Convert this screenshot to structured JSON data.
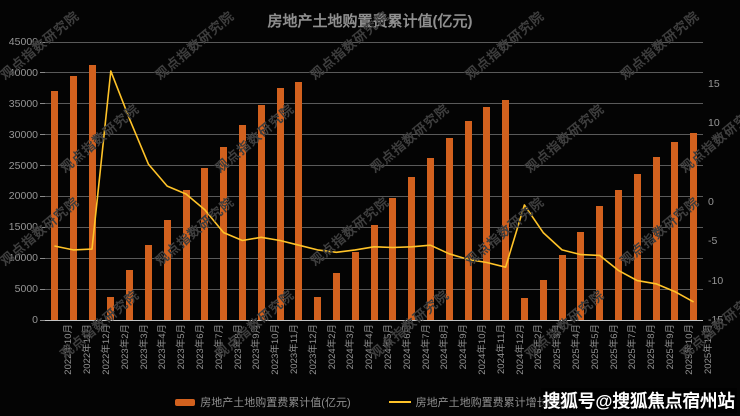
{
  "title": "房地产土地购置费累计值(亿元)",
  "watermark": "观点指数研究院",
  "overlay_credit": "搜狐号@搜狐焦点宿州站",
  "legend": [
    {
      "label": "房地产土地购置费累计值(亿元)",
      "type": "bar",
      "color": "#d2611e"
    },
    {
      "label": "房地产土地购置费累计增长(%)",
      "type": "line",
      "color": "#ffc328"
    }
  ],
  "chart_data": {
    "type": "bar",
    "subtype": "combo bar+line, dual axis",
    "title": "房地产土地购置费累计值(亿元)",
    "categories": [
      "2022年10月",
      "2022年11月",
      "2022年12月",
      "2023年2月",
      "2023年3月",
      "2023年4月",
      "2023年5月",
      "2023年6月",
      "2023年7月",
      "2023年8月",
      "2023年9月",
      "2023年10月",
      "2023年11月",
      "2023年12月",
      "2024年2月",
      "2024年3月",
      "2024年4月",
      "2024年5月",
      "2024年6月",
      "2024年7月",
      "2024年8月",
      "2024年9月",
      "2024年10月",
      "2024年11月",
      "2024年12月",
      "2025年2月",
      "2025年3月",
      "2025年4月",
      "2025年5月",
      "2025年6月",
      "2025年7月",
      "2025年8月",
      "2025年9月",
      "2025年10月",
      "2025年11月"
    ],
    "series": [
      {
        "name": "房地产土地购置费累计值(亿元)",
        "type": "bar",
        "axis": "left",
        "color": "#d2611e",
        "values": [
          37000,
          39500,
          41300,
          3800,
          8100,
          12100,
          16200,
          21000,
          24600,
          28000,
          31500,
          34800,
          37500,
          38600,
          3700,
          7600,
          11000,
          15400,
          19700,
          23200,
          26200,
          29400,
          32200,
          34500,
          35600,
          3500,
          6500,
          10500,
          14200,
          18500,
          21000,
          23600,
          26400,
          28800,
          30200
        ]
      },
      {
        "name": "房地产土地购置费累计增长(%)",
        "type": "line",
        "axis": "right",
        "color": "#ffc328",
        "values": [
          -5.6,
          -6.1,
          -6.0,
          16.6,
          10.5,
          4.8,
          2.0,
          1.0,
          -1.0,
          -3.9,
          -4.9,
          -4.5,
          -4.9,
          -5.5,
          -6.1,
          -6.4,
          -6.1,
          -5.7,
          -5.8,
          -5.7,
          -5.5,
          -6.6,
          -7.3,
          -7.7,
          -8.3,
          -0.4,
          -3.9,
          -6.1,
          -6.7,
          -6.8,
          -8.7,
          -10.0,
          -10.4,
          -11.4,
          -12.7
        ]
      }
    ],
    "left_axis": {
      "min": 0,
      "max": 45000,
      "step": 5000,
      "ticks": [
        0,
        5000,
        10000,
        15000,
        20000,
        25000,
        30000,
        35000,
        40000,
        45000
      ]
    },
    "right_axis": {
      "min": -15,
      "max": 20.3,
      "visible_tick_labels": [
        "15",
        "10",
        "0",
        "-5",
        "-10",
        "-15"
      ],
      "visible_tick_values": [
        15,
        10,
        0,
        -5,
        -10,
        -15
      ]
    },
    "grid": true,
    "legend_position": "bottom",
    "background": "#040404"
  }
}
